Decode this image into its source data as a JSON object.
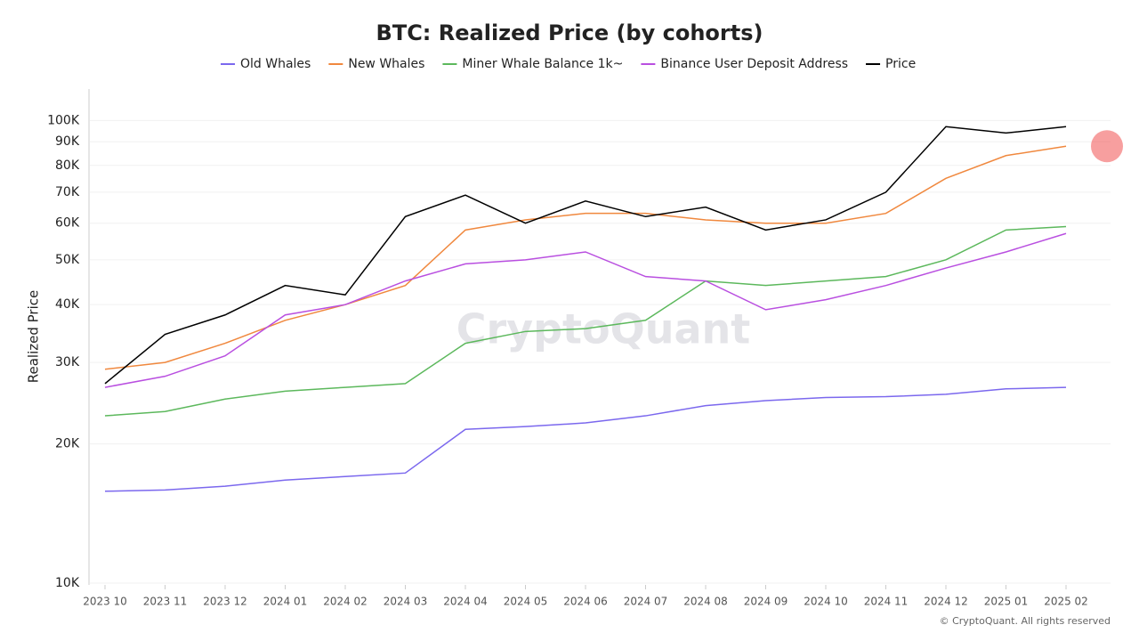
{
  "chart_data": {
    "type": "line",
    "title": "BTC: Realized Price (by cohorts)",
    "y_label": "Realized Price",
    "watermark": "CryptoQuant",
    "credit": "© CryptoQuant. All rights reserved",
    "log_scale": true,
    "grid": true,
    "x": [
      "2023 10",
      "2023 11",
      "2023 12",
      "2024 01",
      "2024 02",
      "2024 03",
      "2024 04",
      "2024 05",
      "2024 06",
      "2024 07",
      "2024 08",
      "2024 09",
      "2024 10",
      "2024 11",
      "2024 12",
      "2025 01",
      "2025 02"
    ],
    "series": [
      {
        "name": "Old Whales",
        "color": "#7b68ee",
        "values": [
          15800,
          15900,
          16200,
          16700,
          17000,
          17300,
          21500,
          21800,
          22200,
          23000,
          24200,
          24800,
          25200,
          25300,
          25600,
          26300,
          26500
        ]
      },
      {
        "name": "New Whales",
        "color": "#f0883e",
        "values": [
          29000,
          30000,
          33000,
          37000,
          40000,
          44000,
          58000,
          61000,
          63000,
          63000,
          61000,
          60000,
          60000,
          63000,
          75000,
          84000,
          88000
        ]
      },
      {
        "name": "Miner Whale Balance 1k~",
        "color": "#5cb85c",
        "values": [
          23000,
          23500,
          25000,
          26000,
          26500,
          27000,
          33000,
          35000,
          35500,
          37000,
          45000,
          44000,
          45000,
          46000,
          50000,
          58000,
          59000
        ]
      },
      {
        "name": "Binance User Deposit Address",
        "color": "#b94fe0",
        "values": [
          26500,
          28000,
          31000,
          38000,
          40000,
          45000,
          49000,
          50000,
          52000,
          46000,
          45000,
          39000,
          41000,
          44000,
          48000,
          52000,
          57000
        ]
      },
      {
        "name": "Price",
        "color": "#000000",
        "values": [
          27000,
          34500,
          38000,
          44000,
          42000,
          62000,
          69000,
          60000,
          67000,
          62000,
          65000,
          58000,
          61000,
          70000,
          97000,
          94000,
          97000
        ]
      }
    ],
    "ylim": [
      10000,
      117000
    ],
    "yticks": [
      {
        "value": 10000,
        "label": "10K"
      },
      {
        "value": 20000,
        "label": "20K"
      },
      {
        "value": 30000,
        "label": "30K"
      },
      {
        "value": 40000,
        "label": "40K"
      },
      {
        "value": 50000,
        "label": "50K"
      },
      {
        "value": 60000,
        "label": "60K"
      },
      {
        "value": 70000,
        "label": "70K"
      },
      {
        "value": 80000,
        "label": "80K"
      },
      {
        "value": 90000,
        "label": "90K"
      },
      {
        "value": 100000,
        "label": "100K"
      }
    ]
  }
}
